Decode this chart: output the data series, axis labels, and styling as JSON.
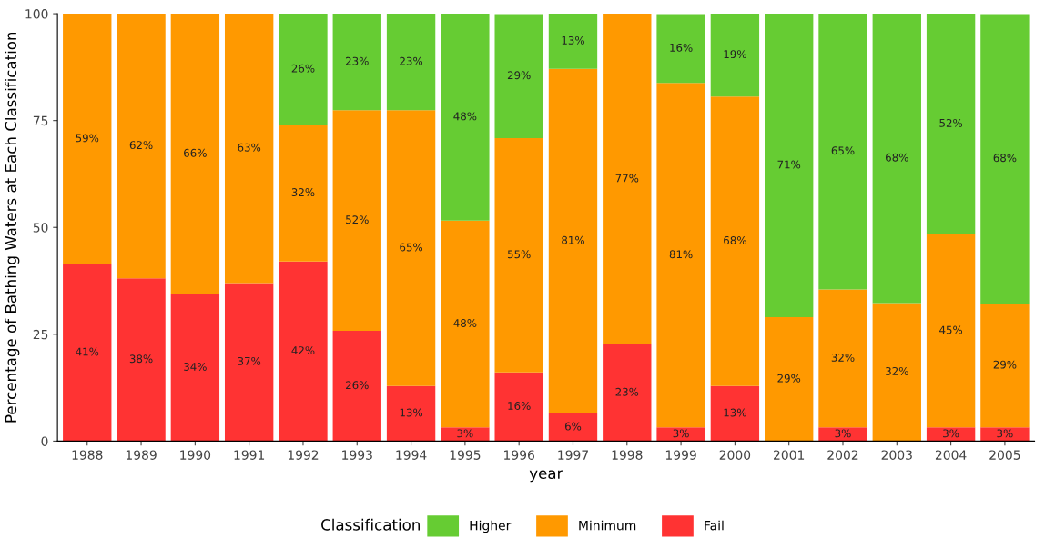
{
  "chart_data": {
    "type": "bar",
    "stacked": true,
    "xlabel": "year",
    "ylabel": "Percentage of Bathing Waters at Each Classification",
    "legend_title": "Classification",
    "legend": "bottom",
    "grid": false,
    "categories": [
      "1988",
      "1989",
      "1990",
      "1991",
      "1992",
      "1993",
      "1994",
      "1995",
      "1996",
      "1997",
      "1998",
      "1999",
      "2000",
      "2001",
      "2002",
      "2003",
      "2004",
      "2005"
    ],
    "ylim": [
      0,
      100
    ],
    "yticks": [
      0,
      25,
      50,
      75,
      100
    ],
    "series": [
      {
        "name": "Fail",
        "color": "#ff3333",
        "values": [
          41.4,
          38.1,
          34.4,
          37,
          42,
          25.8,
          12.9,
          3.2,
          16.1,
          6.5,
          22.6,
          3.2,
          12.9,
          0,
          3.2,
          0,
          3.2,
          3.2
        ],
        "value_labels": [
          "41%",
          "38%",
          "34%",
          "37%",
          "42%",
          "26%",
          "13%",
          "3%",
          "16%",
          "6%",
          "23%",
          "3%",
          "13%",
          null,
          "3%",
          null,
          "3%",
          "3%"
        ]
      },
      {
        "name": "Minimum",
        "color": "#ff9900",
        "values": [
          58.6,
          61.9,
          65.6,
          63,
          32,
          51.6,
          64.5,
          48.4,
          54.8,
          80.6,
          77.4,
          80.6,
          67.7,
          29.0,
          32.3,
          32.3,
          45.2,
          29.0
        ],
        "value_labels": [
          "59%",
          "62%",
          "66%",
          "63%",
          "32%",
          "52%",
          "65%",
          "48%",
          "55%",
          "81%",
          "77%",
          "81%",
          "68%",
          "29%",
          "32%",
          "32%",
          "45%",
          "29%"
        ]
      },
      {
        "name": "Higher",
        "color": "#66cc33",
        "values": [
          0,
          0,
          0,
          0,
          26,
          22.6,
          22.6,
          48.4,
          29.0,
          12.9,
          0,
          16.1,
          19.4,
          71.0,
          64.5,
          67.7,
          51.6,
          67.7
        ],
        "value_labels": [
          null,
          null,
          null,
          null,
          "26%",
          "23%",
          "23%",
          "48%",
          "29%",
          "13%",
          null,
          "16%",
          "19%",
          "71%",
          "65%",
          "68%",
          "52%",
          "68%"
        ]
      }
    ]
  }
}
